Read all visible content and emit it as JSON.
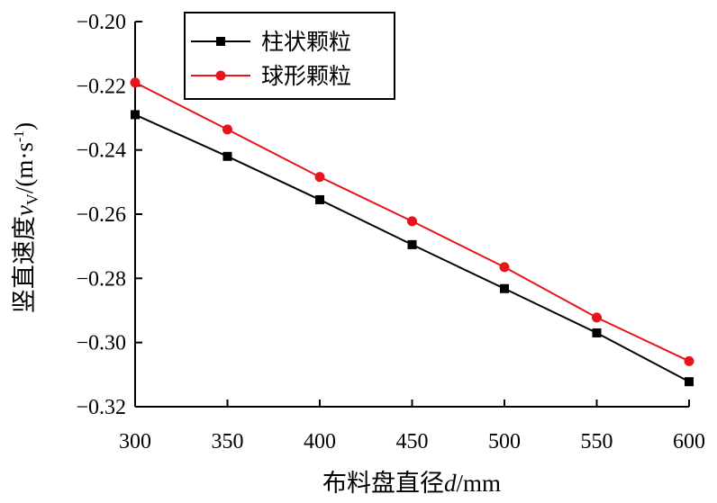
{
  "chart_data": {
    "type": "line",
    "x": [
      300,
      350,
      400,
      450,
      500,
      550,
      600
    ],
    "series": [
      {
        "name": "柱状颗粒",
        "color": "#000000",
        "marker": "square",
        "values": [
          -0.229,
          -0.242,
          -0.2555,
          -0.2695,
          -0.2832,
          -0.297,
          -0.3122
        ]
      },
      {
        "name": "球形颗粒",
        "color": "#e8141c",
        "marker": "circle",
        "values": [
          -0.219,
          -0.2336,
          -0.2484,
          -0.2622,
          -0.2765,
          -0.2922,
          -0.3058
        ]
      }
    ],
    "xlim": [
      300,
      600
    ],
    "ylim": [
      -0.32,
      -0.2
    ],
    "xticks": [
      "300",
      "350",
      "400",
      "450",
      "500",
      "550",
      "600"
    ],
    "yticks": [
      "−0.20",
      "−0.22",
      "−0.24",
      "−0.26",
      "−0.28",
      "−0.30",
      "−0.32"
    ],
    "xlabel": "布料盘直径d/mm",
    "ylabel": "竖直速度v_v/(m·s⁻¹)",
    "legend_position": "top-left-inside",
    "grid": false
  }
}
